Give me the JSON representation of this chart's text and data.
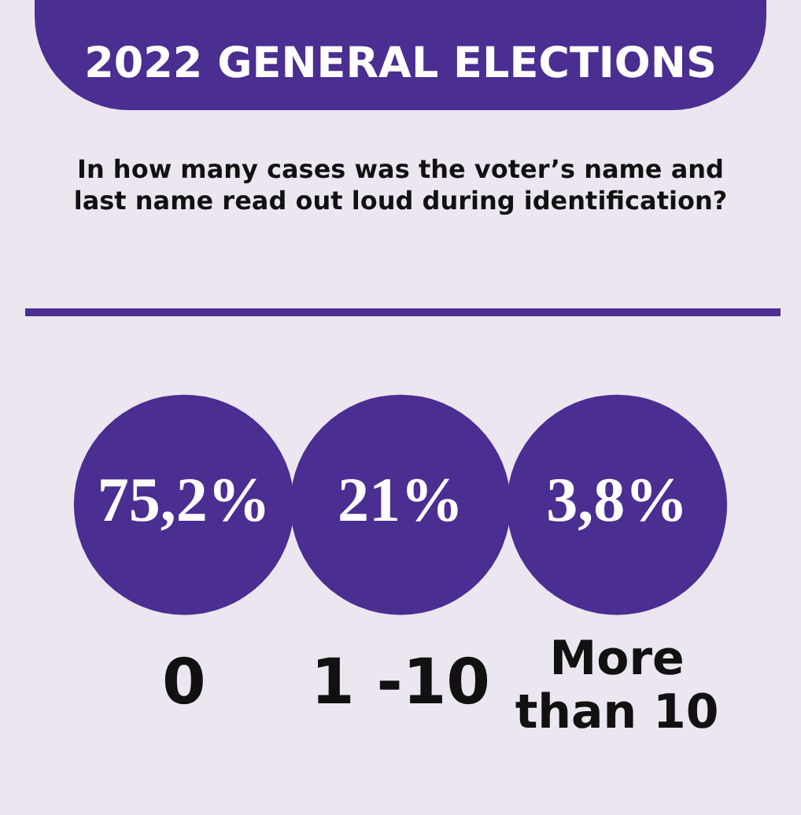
{
  "chart_data": {
    "type": "other",
    "title": "2022 GENERAL ELECTIONS",
    "subtitle": "In how many cases was the voter’s name and last name read out loud during identification?",
    "categories": [
      "0",
      "1 -10",
      "More than 10"
    ],
    "values": [
      75.2,
      21,
      3.8
    ],
    "value_labels": [
      "75,2%",
      "21%",
      "3,8%"
    ],
    "color": "#4a2e91"
  }
}
